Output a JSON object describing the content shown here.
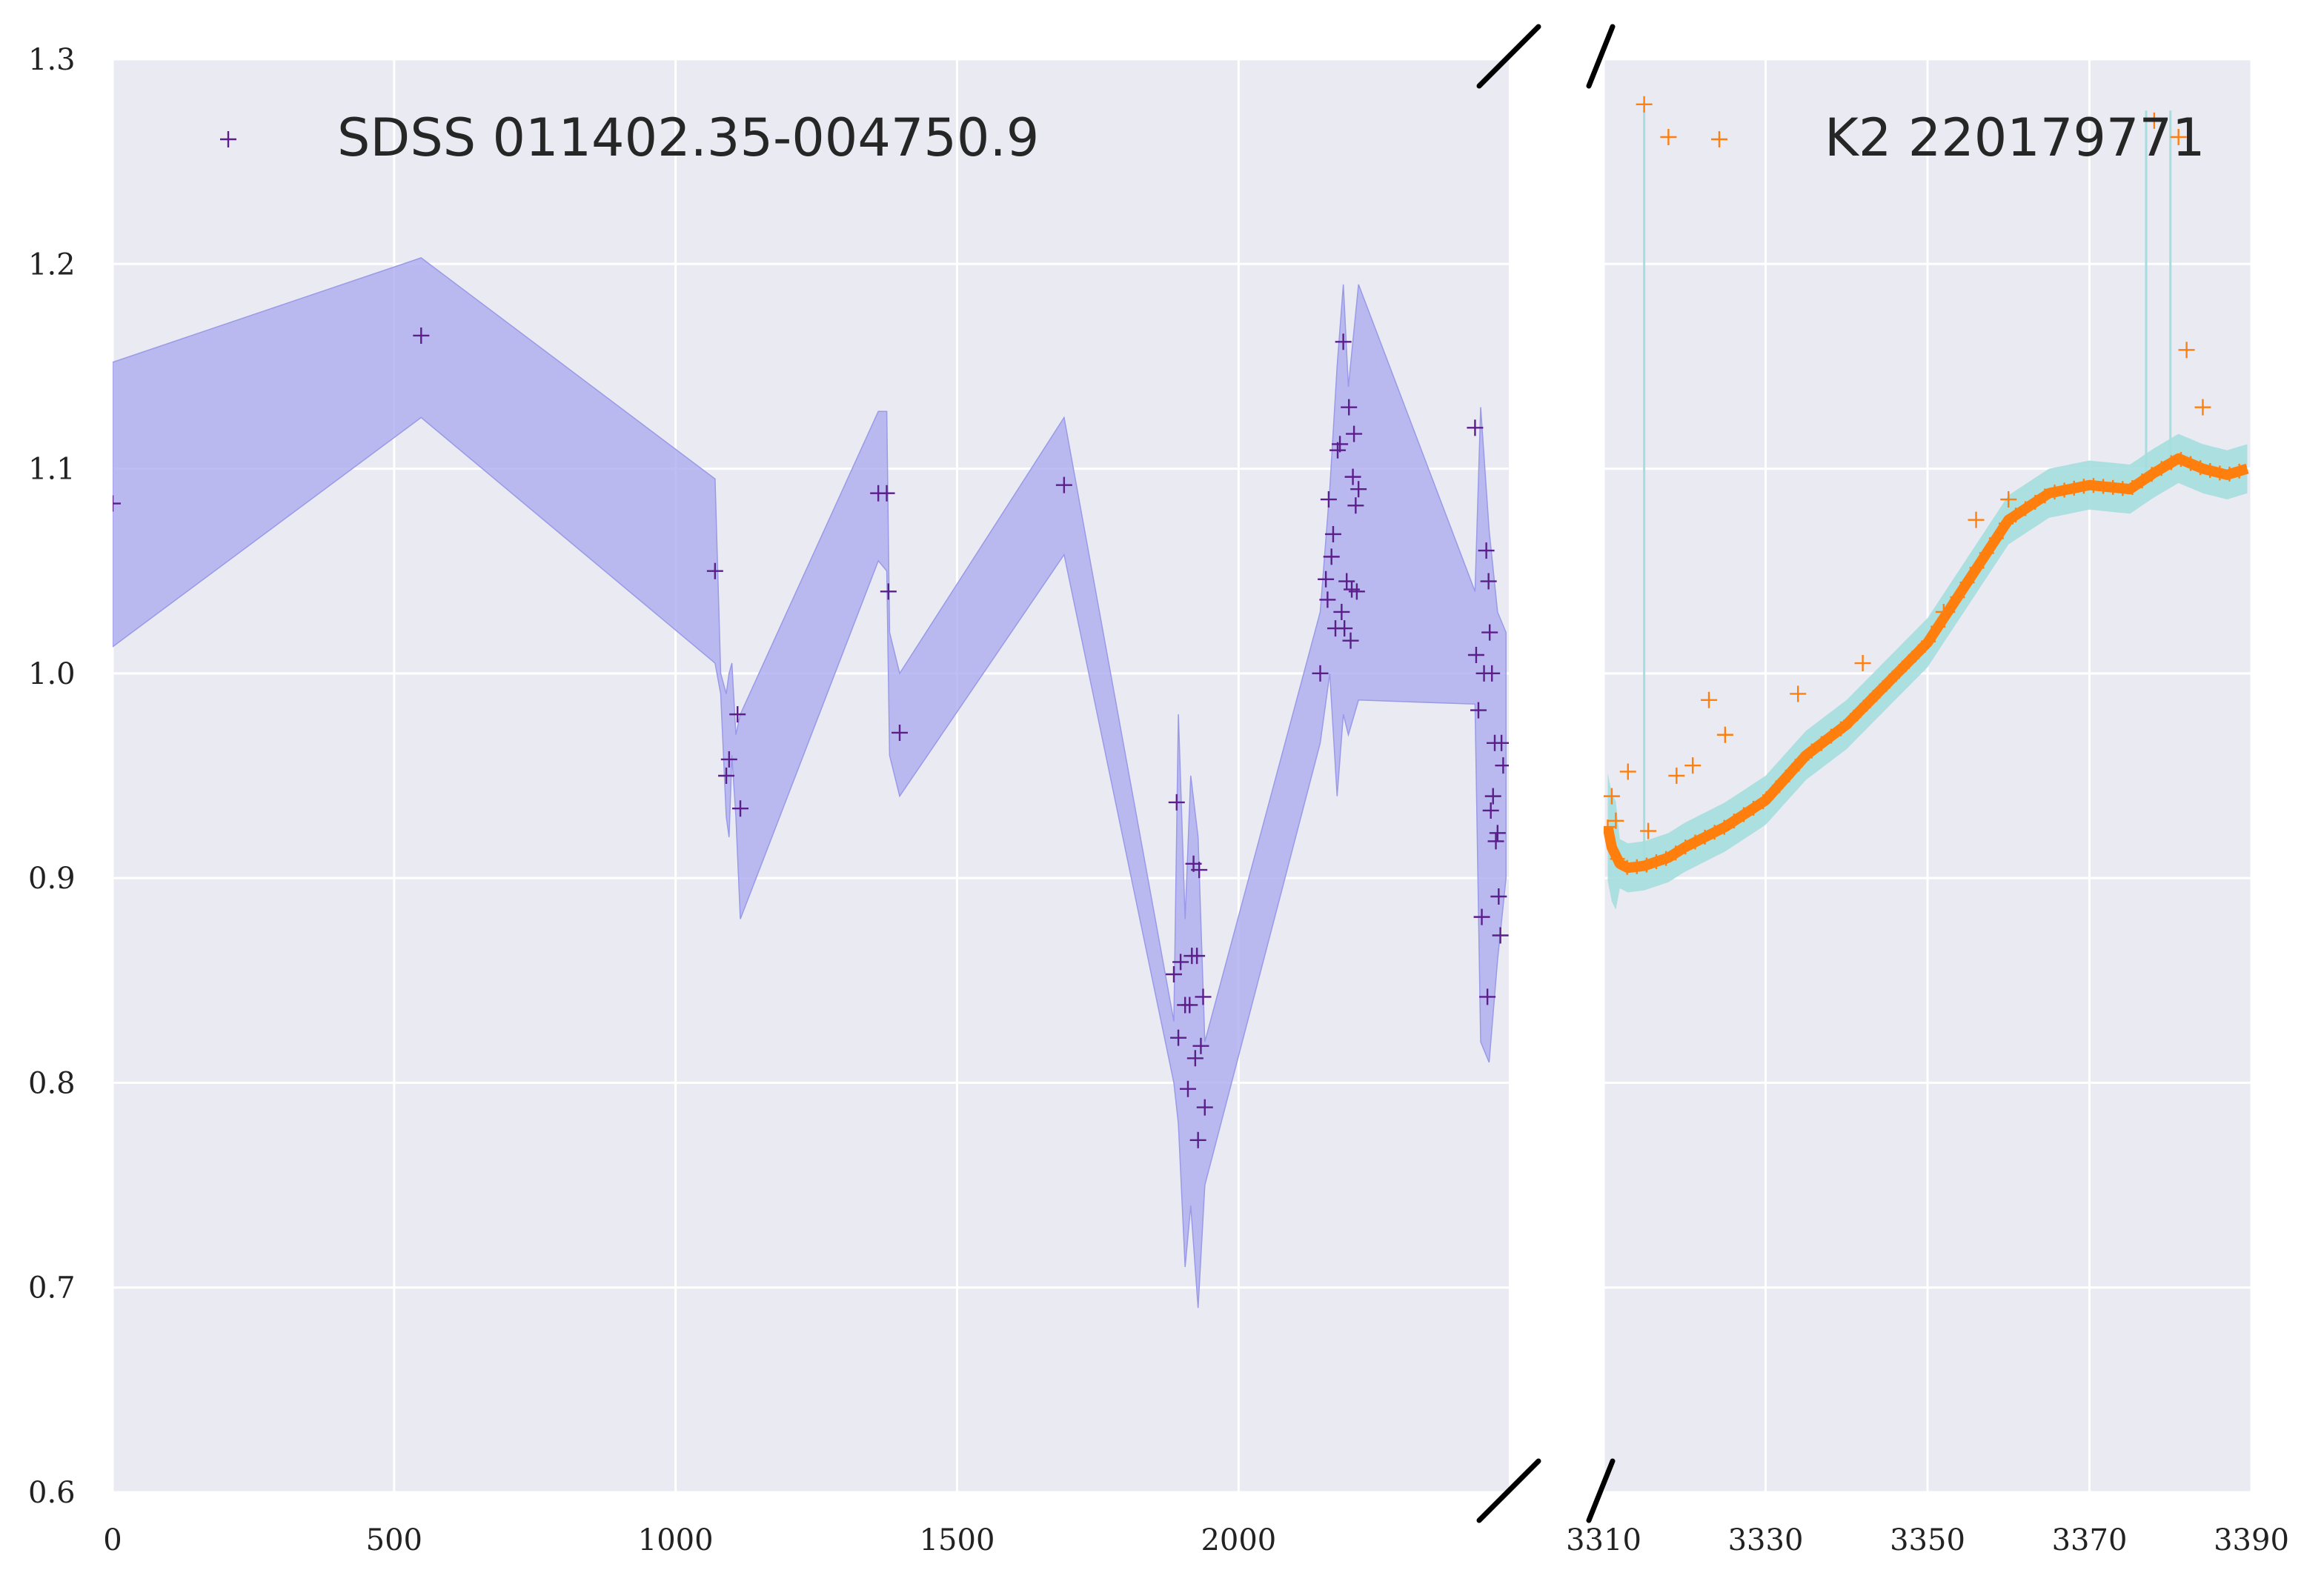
{
  "chart_data": [
    {
      "type": "scatter",
      "panel": "left",
      "title": "",
      "xlabel": "",
      "ylabel": "",
      "xlim": [
        0,
        2480
      ],
      "ylim": [
        0.6,
        1.3
      ],
      "xticks": [
        "0",
        "500",
        "1000",
        "1500",
        "2000"
      ],
      "xtick_values": [
        0,
        500,
        1000,
        1500,
        2000
      ],
      "yticks": [
        "0.6",
        "0.7",
        "0.8",
        "0.9",
        "1.0",
        "1.1",
        "1.2",
        "1.3"
      ],
      "ytick_values": [
        0.6,
        0.7,
        0.8,
        0.9,
        1.0,
        1.1,
        1.2,
        1.3
      ],
      "grid": true,
      "legend_position": "top-left",
      "colors": {
        "points": "#5b1f8a",
        "band": "#aaaaf0",
        "background": "#eaeaf2"
      },
      "series": [
        {
          "name": "SDSS 011402.35-004750.9",
          "marker": "+",
          "points": [
            [
              0,
              1.083
            ],
            [
              548,
              1.165
            ],
            [
              1070,
              1.05
            ],
            [
              1090,
              0.95
            ],
            [
              1095,
              0.958
            ],
            [
              1110,
              0.98
            ],
            [
              1115,
              0.934
            ],
            [
              1360,
              1.088
            ],
            [
              1375,
              1.088
            ],
            [
              1378,
              1.04
            ],
            [
              1398,
              0.971
            ],
            [
              1690,
              1.092
            ],
            [
              1885,
              0.853
            ],
            [
              1890,
              0.937
            ],
            [
              1893,
              0.822
            ],
            [
              1897,
              0.859
            ],
            [
              1905,
              0.838
            ],
            [
              1910,
              0.797
            ],
            [
              1913,
              0.838
            ],
            [
              1917,
              0.862
            ],
            [
              1920,
              0.907
            ],
            [
              1923,
              0.812
            ],
            [
              1926,
              0.862
            ],
            [
              1928,
              0.772
            ],
            [
              1930,
              0.904
            ],
            [
              1933,
              0.818
            ],
            [
              1937,
              0.842
            ],
            [
              1940,
              0.788
            ],
            [
              2145,
              1.0
            ],
            [
              2155,
              1.046
            ],
            [
              2158,
              1.036
            ],
            [
              2160,
              1.085
            ],
            [
              2165,
              1.057
            ],
            [
              2168,
              1.068
            ],
            [
              2172,
              1.022
            ],
            [
              2176,
              1.109
            ],
            [
              2180,
              1.112
            ],
            [
              2183,
              1.03
            ],
            [
              2186,
              1.162
            ],
            [
              2188,
              1.022
            ],
            [
              2192,
              1.045
            ],
            [
              2196,
              1.13
            ],
            [
              2199,
              1.016
            ],
            [
              2201,
              1.041
            ],
            [
              2203,
              1.096
            ],
            [
              2205,
              1.117
            ],
            [
              2208,
              1.082
            ],
            [
              2210,
              1.04
            ],
            [
              2213,
              1.09
            ],
            [
              2420,
              1.12
            ],
            [
              2422,
              1.009
            ],
            [
              2426,
              0.982
            ],
            [
              2432,
              0.881
            ],
            [
              2436,
              1.0
            ],
            [
              2440,
              1.06
            ],
            [
              2442,
              0.842
            ],
            [
              2444,
              1.045
            ],
            [
              2446,
              1.02
            ],
            [
              2448,
              0.933
            ],
            [
              2450,
              1.0
            ],
            [
              2452,
              0.94
            ],
            [
              2455,
              0.966
            ],
            [
              2457,
              0.918
            ],
            [
              2460,
              0.922
            ],
            [
              2462,
              0.891
            ],
            [
              2465,
              0.872
            ],
            [
              2467,
              0.966
            ],
            [
              2470,
              0.955
            ]
          ]
        }
      ],
      "band": {
        "x": [
          0,
          548,
          1070,
          1080,
          1090,
          1095,
          1100,
          1107,
          1115,
          1360,
          1375,
          1380,
          1398,
          1690,
          1885,
          1893,
          1905,
          1915,
          1928,
          1940,
          2145,
          2162,
          2175,
          2186,
          2195,
          2213,
          2420,
          2430,
          2445,
          2460,
          2475
        ],
        "upper": [
          1.152,
          1.203,
          1.095,
          1.0,
          0.99,
          1.0,
          1.005,
          0.97,
          0.98,
          1.128,
          1.128,
          1.02,
          1.0,
          1.125,
          0.83,
          0.98,
          0.88,
          0.95,
          0.92,
          0.82,
          1.03,
          1.09,
          1.15,
          1.19,
          1.14,
          1.19,
          1.04,
          1.13,
          1.07,
          1.03,
          1.02
        ],
        "lower": [
          1.013,
          1.125,
          1.005,
          0.99,
          0.93,
          0.92,
          0.96,
          0.93,
          0.88,
          1.055,
          1.05,
          0.96,
          0.94,
          1.058,
          0.8,
          0.78,
          0.71,
          0.74,
          0.69,
          0.75,
          0.966,
          1.0,
          0.94,
          0.98,
          0.97,
          0.987,
          0.985,
          0.82,
          0.81,
          0.86,
          0.9
        ]
      }
    },
    {
      "type": "scatter",
      "panel": "right",
      "title": "",
      "xlabel": "",
      "ylabel": "",
      "xlim": [
        3310,
        3390
      ],
      "ylim": [
        0.6,
        1.3
      ],
      "xticks": [
        "3310",
        "3330",
        "3350",
        "3370",
        "3390"
      ],
      "xtick_values": [
        3310,
        3330,
        3350,
        3370,
        3390
      ],
      "grid": true,
      "legend_position": "top-right",
      "colors": {
        "points": "#ff7f0e",
        "band": "#a5dede",
        "background": "#eaeaf2"
      },
      "series": [
        {
          "name": "K2 220179771",
          "marker": "+",
          "trend": [
            [
              3310.5,
              0.925
            ],
            [
              3311,
              0.915
            ],
            [
              3312,
              0.907
            ],
            [
              3313,
              0.905
            ],
            [
              3315,
              0.906
            ],
            [
              3318,
              0.91
            ],
            [
              3320,
              0.915
            ],
            [
              3325,
              0.925
            ],
            [
              3330,
              0.938
            ],
            [
              3335,
              0.96
            ],
            [
              3340,
              0.975
            ],
            [
              3345,
              0.995
            ],
            [
              3350,
              1.015
            ],
            [
              3355,
              1.045
            ],
            [
              3360,
              1.075
            ],
            [
              3365,
              1.088
            ],
            [
              3370,
              1.092
            ],
            [
              3375,
              1.09
            ],
            [
              3378,
              1.098
            ],
            [
              3381,
              1.105
            ],
            [
              3384,
              1.1
            ],
            [
              3387,
              1.097
            ],
            [
              3389.5,
              1.1
            ]
          ],
          "outliers": [
            [
              3311,
              0.94
            ],
            [
              3311.5,
              0.928
            ],
            [
              3313,
              0.952
            ],
            [
              3315,
              1.278
            ],
            [
              3315.5,
              0.923
            ],
            [
              3318,
              1.262
            ],
            [
              3319,
              0.95
            ],
            [
              3321,
              0.955
            ],
            [
              3323,
              0.987
            ],
            [
              3325,
              0.97
            ],
            [
              3334,
              0.99
            ],
            [
              3342,
              1.005
            ],
            [
              3352,
              1.03
            ],
            [
              3356,
              1.075
            ],
            [
              3360,
              1.085
            ],
            [
              3378,
              1.27
            ],
            [
              3381,
              1.262
            ],
            [
              3382,
              1.158
            ],
            [
              3384,
              1.13
            ]
          ]
        }
      ],
      "band_halfwidth": 0.012,
      "band_spikes": [
        3315,
        3377,
        3380
      ]
    }
  ]
}
